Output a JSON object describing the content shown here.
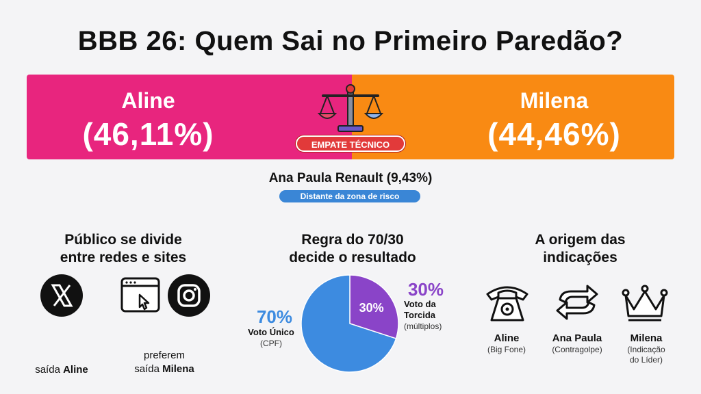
{
  "title": "BBB 26: Quem Sai no Primeiro Paredão?",
  "colors": {
    "left": "#e8257e",
    "right": "#f98a13",
    "badge": "#3a86d6",
    "pie_blue": "#3d8be0",
    "pie_purple": "#8a44c8",
    "empate": "#e23a3a"
  },
  "leader_bar": {
    "left": {
      "name": "Aline",
      "pct": "(46,11%)"
    },
    "right": {
      "name": "Milena",
      "pct": "(44,46%)"
    },
    "center_icon": "scale-icon",
    "badge": "EMPATE TÉCNICO"
  },
  "third": {
    "text": "Ana Paula Renault (9,43%)",
    "badge": "Distante da zona de risco"
  },
  "section1": {
    "heading_line1": "Público se divide",
    "heading_line2": "entre redes e sites",
    "x_icon": "x-logo-icon",
    "browser_icon": "browser-icon",
    "instagram_icon": "instagram-icon",
    "left_caption_prefix": "saída ",
    "left_caption_bold": "Aline",
    "right_caption_line1": "preferem",
    "right_caption_prefix": "saída ",
    "right_caption_bold": "Milena"
  },
  "section2": {
    "heading_line1": "Regra do 70/30",
    "heading_line2": "decide o resultado",
    "chart_data": {
      "type": "pie",
      "slices": [
        {
          "label": "Voto Único",
          "sublabel": "(CPF)",
          "value": 70,
          "display": "70%",
          "color": "#3d8be0"
        },
        {
          "label": "Voto da Torcida",
          "sublabel": "(múltiplos)",
          "value": 30,
          "display": "30%",
          "color": "#8a44c8"
        }
      ]
    },
    "left_pct": "70%",
    "left_label_line1": "Voto Único",
    "left_label_line2": "(CPF)",
    "right_pct": "30%",
    "right_label_line1": "Voto da",
    "right_label_line2": "Torcida",
    "right_label_line3": "(múltiplos)",
    "inner_label": "30%"
  },
  "section3": {
    "heading_line1": "A origem das",
    "heading_line2": "indicações",
    "items": [
      {
        "icon": "telephone-icon",
        "name": "Aline",
        "sub1": "(Big Fone)",
        "sub2": ""
      },
      {
        "icon": "swap-arrows-icon",
        "name": "Ana Paula",
        "sub1": "(Contragolpe)",
        "sub2": ""
      },
      {
        "icon": "crown-icon",
        "name": "Milena",
        "sub1": "(Indicação",
        "sub2": "do Líder)"
      }
    ]
  }
}
